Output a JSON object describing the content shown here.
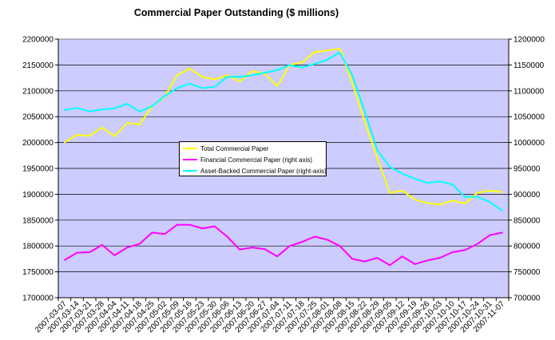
{
  "chart_data": {
    "type": "line",
    "title": "Commercial Paper Outstanding ($ millions)",
    "xlabel": "",
    "ylabel": "",
    "ylim_left": [
      1700000,
      2200000
    ],
    "ylim_right": [
      700000,
      1200000
    ],
    "grid": true,
    "legend_position": "center-left",
    "plot_background": "#ccccff",
    "left_ticks": [
      "1700000",
      "1750000",
      "1800000",
      "1850000",
      "1900000",
      "1950000",
      "2000000",
      "2050000",
      "2100000",
      "2150000",
      "2200000"
    ],
    "right_ticks": [
      "700000",
      "750000",
      "800000",
      "850000",
      "900000",
      "950000",
      "1000000",
      "1050000",
      "1100000",
      "1150000",
      "1200000"
    ],
    "x": [
      "2007-03-07",
      "2007-03-14",
      "2007-03-21",
      "2007-03-28",
      "2007-04-04",
      "2007-04-11",
      "2007-04-18",
      "2007-04-25",
      "2007-05-02",
      "2007-05-09",
      "2007-05-16",
      "2007-05-23",
      "2007-05-30",
      "2007-06-06",
      "2007-06-13",
      "2007-06-20",
      "2007-06-27",
      "2007-07-04",
      "2007-07-11",
      "2007-07-18",
      "2007-07-25",
      "2007-08-01",
      "2007-08-08",
      "2007-08-15",
      "2007-08-22",
      "2007-08-29",
      "2007-09-05",
      "2007-09-12",
      "2007-09-19",
      "2007-09-26",
      "2007-10-03",
      "2007-10-10",
      "2007-10-17",
      "2007-10-24",
      "2007-10-31",
      "2007-11-07"
    ],
    "series": [
      {
        "name": "Total Commercial Paper",
        "axis": "left",
        "color": "#ffff00",
        "values": [
          2000000,
          2015000,
          2013000,
          2029000,
          2012000,
          2038000,
          2035000,
          2070000,
          2088000,
          2130000,
          2143000,
          2127000,
          2122000,
          2130000,
          2118000,
          2138000,
          2133000,
          2109000,
          2150000,
          2155000,
          2175000,
          2178000,
          2182000,
          2115000,
          2040000,
          1970000,
          1903000,
          1907000,
          1890000,
          1883000,
          1880000,
          1888000,
          1882000,
          1903000,
          1907000,
          1904000
        ]
      },
      {
        "name": "Financial Commercial Paper (right axis)",
        "axis": "right",
        "color": "#ff00ff",
        "values": [
          773000,
          787000,
          788000,
          802000,
          782000,
          797000,
          804000,
          826000,
          823000,
          841000,
          841000,
          834000,
          838000,
          818000,
          793000,
          797000,
          794000,
          780000,
          800000,
          808000,
          818000,
          812000,
          800000,
          775000,
          770000,
          777000,
          763000,
          780000,
          765000,
          772000,
          777000,
          788000,
          792000,
          804000,
          821000,
          826000
        ]
      },
      {
        "name": "Asset-Backed Commercial Paper (right-axis)",
        "axis": "right",
        "color": "#00ffff",
        "values": [
          1063000,
          1067000,
          1060000,
          1064000,
          1066000,
          1075000,
          1060000,
          1070000,
          1090000,
          1105000,
          1114000,
          1105000,
          1108000,
          1127000,
          1127000,
          1130000,
          1135000,
          1140000,
          1150000,
          1145000,
          1152000,
          1160000,
          1174000,
          1130000,
          1060000,
          985000,
          953000,
          940000,
          930000,
          922000,
          925000,
          919000,
          895000,
          895000,
          885000,
          868000
        ]
      }
    ]
  }
}
